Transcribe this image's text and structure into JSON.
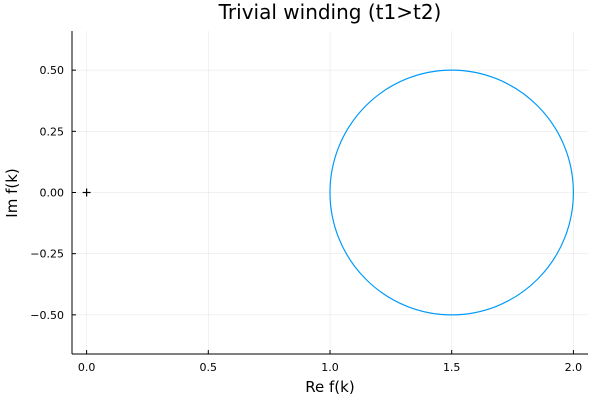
{
  "chart_data": {
    "type": "line",
    "title": "Trivial winding (t1>t2)",
    "xlabel": "Re f(k)",
    "ylabel": "Im f(k)",
    "xlim": [
      -0.06,
      2.06
    ],
    "ylim": [
      -0.66,
      0.66
    ],
    "x_ticks": [
      0.0,
      0.5,
      1.0,
      1.5,
      2.0
    ],
    "x_tick_labels": [
      "0.0",
      "0.5",
      "1.0",
      "1.5",
      "2.0"
    ],
    "y_ticks": [
      0.5,
      0.25,
      0.0,
      -0.25,
      -0.5
    ],
    "y_tick_labels": [
      "0.50",
      "0.25",
      "0.00",
      "−0.25",
      "−0.50"
    ],
    "grid": true,
    "legend": "none",
    "series": [
      {
        "kind": "circle",
        "center": [
          1.5,
          0.0
        ],
        "radius": 0.5,
        "color": "#009AFA"
      }
    ],
    "markers": [
      {
        "x": 0.0,
        "y": 0.0,
        "symbol": "+",
        "color": "#000000"
      }
    ]
  }
}
